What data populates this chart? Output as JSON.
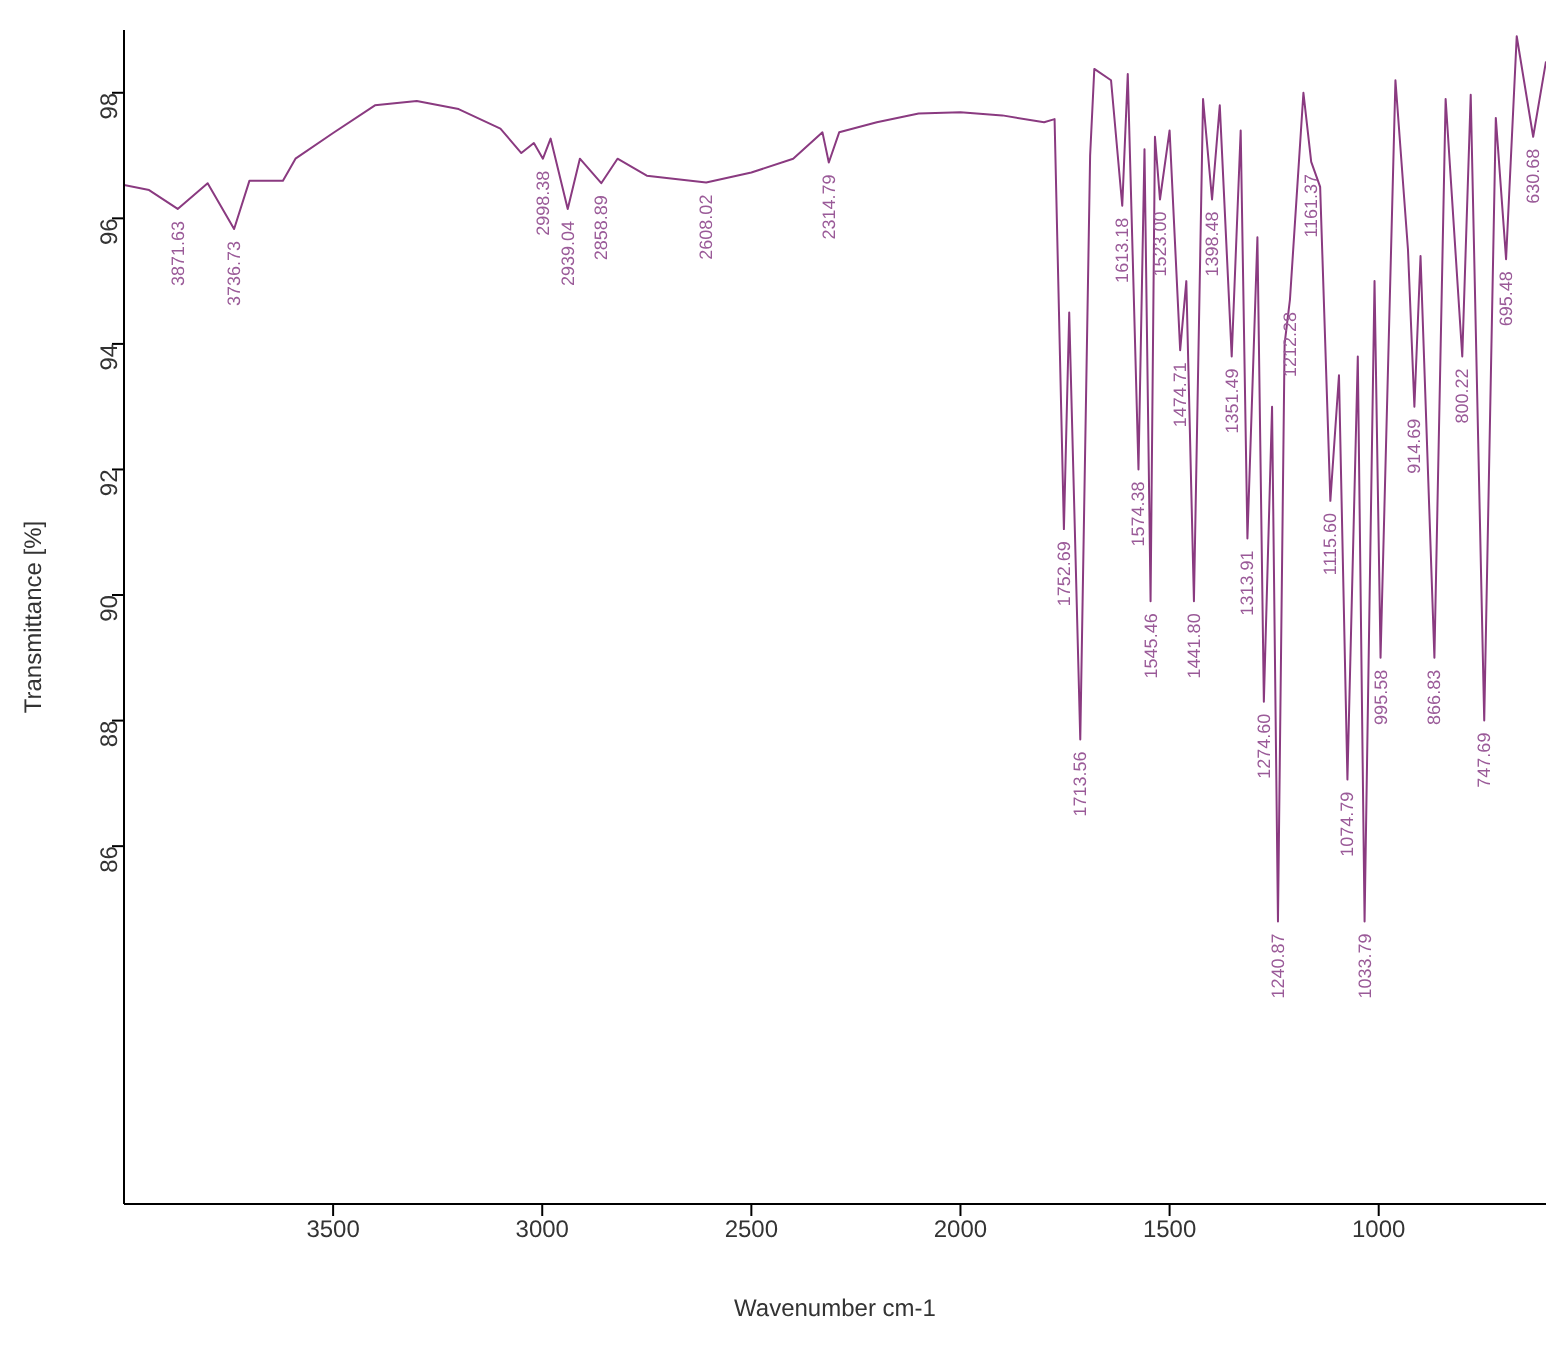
{
  "chart_data": {
    "type": "line",
    "xlabel": "Wavenumber cm-1",
    "ylabel": "Transmittance [%]",
    "x": [
      4000,
      3940,
      3871.63,
      3800,
      3736.73,
      3700,
      3620,
      3590,
      3500,
      3400,
      3300,
      3200,
      3100,
      3050,
      3020,
      2998.38,
      2980,
      2939.04,
      2910,
      2858.89,
      2820,
      2750,
      2608.02,
      2500,
      2400,
      2330,
      2314.79,
      2290,
      2200,
      2100,
      2000,
      1900,
      1800,
      1775,
      1752.69,
      1740,
      1713.56,
      1690,
      1680,
      1640,
      1613.18,
      1600,
      1574.38,
      1560,
      1545.46,
      1535,
      1523.0,
      1500,
      1474.71,
      1460,
      1441.8,
      1420,
      1398.48,
      1380,
      1351.49,
      1330,
      1313.91,
      1290,
      1274.6,
      1255,
      1240.87,
      1225,
      1212.28,
      1180,
      1161.37,
      1140,
      1115.6,
      1095,
      1074.79,
      1050,
      1033.79,
      1010,
      995.58,
      960,
      930,
      914.69,
      900,
      866.83,
      840,
      800.22,
      780,
      747.69,
      720,
      695.48,
      670,
      630.68,
      600
    ],
    "series": [
      {
        "color": "#8a3a80",
        "values": [
          96.53,
          96.45,
          96.15,
          96.56,
          95.83,
          96.6,
          96.6,
          96.95,
          97.36,
          97.8,
          97.87,
          97.74,
          97.43,
          97.04,
          97.2,
          96.95,
          97.27,
          96.15,
          96.95,
          96.56,
          96.95,
          96.68,
          96.57,
          96.73,
          96.95,
          97.37,
          96.89,
          97.37,
          97.53,
          97.67,
          97.69,
          97.64,
          97.53,
          97.58,
          91.05,
          94.5,
          87.7,
          97.0,
          98.38,
          98.2,
          96.2,
          98.3,
          92.0,
          97.1,
          89.9,
          97.3,
          96.3,
          97.4,
          93.9,
          95.0,
          89.9,
          97.9,
          96.3,
          97.8,
          93.8,
          97.4,
          90.9,
          95.7,
          88.3,
          93.0,
          84.8,
          94.0,
          94.7,
          98.0,
          96.9,
          96.5,
          91.5,
          93.5,
          87.06,
          93.8,
          84.8,
          95.0,
          89.0,
          98.2,
          95.5,
          93.0,
          95.4,
          89.0,
          97.9,
          93.8,
          97.97,
          88.0,
          97.6,
          95.35,
          98.9,
          97.3,
          98.5
        ]
      }
    ],
    "xlim": [
      4000,
      600
    ],
    "ylim": [
      80.3,
      99.0
    ],
    "xticks": [
      3500,
      3000,
      2500,
      2000,
      1500,
      1000
    ],
    "yticks": [
      86,
      88,
      90,
      92,
      94,
      96,
      98
    ],
    "grid": false,
    "legend": false,
    "annotations": [
      {
        "text": "3871.63",
        "x": 3871.63,
        "y": 96.15
      },
      {
        "text": "3736.73",
        "x": 3736.73,
        "y": 95.83
      },
      {
        "text": "2998.38",
        "x": 2998.38,
        "y": 96.95
      },
      {
        "text": "2939.04",
        "x": 2939.04,
        "y": 96.15
      },
      {
        "text": "2858.89",
        "x": 2858.89,
        "y": 96.56
      },
      {
        "text": "2608.02",
        "x": 2608.02,
        "y": 96.57
      },
      {
        "text": "2314.79",
        "x": 2314.79,
        "y": 96.89
      },
      {
        "text": "1752.69",
        "x": 1752.69,
        "y": 91.05
      },
      {
        "text": "1713.56",
        "x": 1713.56,
        "y": 87.7
      },
      {
        "text": "1613.18",
        "x": 1613.18,
        "y": 96.2
      },
      {
        "text": "1574.38",
        "x": 1574.38,
        "y": 92.0
      },
      {
        "text": "1545.46",
        "x": 1545.46,
        "y": 89.9
      },
      {
        "text": "1523.00",
        "x": 1523.0,
        "y": 96.3
      },
      {
        "text": "1474.71",
        "x": 1474.71,
        "y": 93.9
      },
      {
        "text": "1441.80",
        "x": 1441.8,
        "y": 89.9
      },
      {
        "text": "1398.48",
        "x": 1398.48,
        "y": 96.3
      },
      {
        "text": "1351.49",
        "x": 1351.49,
        "y": 93.8
      },
      {
        "text": "1313.91",
        "x": 1313.91,
        "y": 90.9
      },
      {
        "text": "1274.60",
        "x": 1274.6,
        "y": 88.3
      },
      {
        "text": "1240.87",
        "x": 1240.87,
        "y": 84.8
      },
      {
        "text": "1212.28",
        "x": 1212.28,
        "y": 94.7
      },
      {
        "text": "1161.37",
        "x": 1161.37,
        "y": 96.9
      },
      {
        "text": "1115.60",
        "x": 1115.6,
        "y": 91.5
      },
      {
        "text": "1074.79",
        "x": 1074.79,
        "y": 87.06
      },
      {
        "text": "1033.79",
        "x": 1033.79,
        "y": 84.8
      },
      {
        "text": "995.58",
        "x": 995.58,
        "y": 89.0
      },
      {
        "text": "914.69",
        "x": 914.69,
        "y": 93.0
      },
      {
        "text": "866.83",
        "x": 866.83,
        "y": 89.0
      },
      {
        "text": "800.22",
        "x": 800.22,
        "y": 93.8
      },
      {
        "text": "747.69",
        "x": 747.69,
        "y": 88.0
      },
      {
        "text": "695.48",
        "x": 695.48,
        "y": 95.35
      },
      {
        "text": "630.68",
        "x": 630.68,
        "y": 97.3
      }
    ]
  }
}
